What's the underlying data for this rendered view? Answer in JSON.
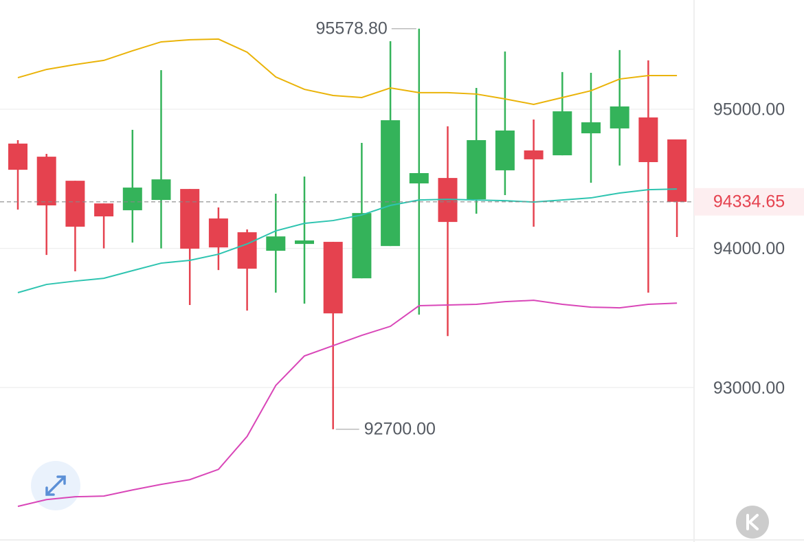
{
  "chart_data": {
    "type": "candlestick",
    "up_color": "#34b35a",
    "down_color": "#e5424f",
    "grid": true,
    "ylim": [
      91890,
      95785
    ],
    "yticks": [
      {
        "value": 95000,
        "label": "95000.00"
      },
      {
        "value": 94000,
        "label": "94000.00"
      },
      {
        "value": 93000,
        "label": "93000.00"
      }
    ],
    "open": [
      94753,
      94659,
      94486,
      94323,
      94274,
      94348,
      94427,
      94215,
      94116,
      93983,
      94032,
      94047,
      93785,
      94017,
      94467,
      94506,
      94353,
      94561,
      94704,
      94669,
      94827,
      94862,
      94941,
      94783
    ],
    "high": [
      94778,
      94679,
      94486,
      94323,
      94852,
      95281,
      94427,
      94294,
      94136,
      94393,
      94516,
      94047,
      94758,
      95489,
      95578.8,
      94877,
      95153,
      95415,
      94926,
      95267,
      95262,
      95425,
      95351,
      94783
    ],
    "low": [
      94279,
      93953,
      93835,
      94000,
      94042,
      94000,
      93593,
      93844,
      93553,
      93682,
      93603,
      92700,
      93785,
      94017,
      93524,
      93370,
      94249,
      94383,
      94156,
      94669,
      94472,
      94595,
      93682,
      94082
    ],
    "close": [
      94565,
      94309,
      94156,
      94230,
      94437,
      94496,
      93998,
      94007,
      93854,
      94086,
      94057,
      93533,
      94254,
      94921,
      94541,
      94190,
      94778,
      94847,
      94640,
      94985,
      94906,
      95020,
      94620,
      94334.65
    ],
    "bands": [
      {
        "color": "#eab308",
        "values": [
          95227,
          95286,
          95321,
          95351,
          95420,
          95484,
          95499,
          95504,
          95410,
          95232,
          95143,
          95099,
          95084,
          95153,
          95119,
          95119,
          95109,
          95074,
          95035,
          95084,
          95133,
          95217,
          95242,
          95242
        ]
      },
      {
        "color": "#2ec4b0",
        "values": [
          93682,
          93741,
          93765,
          93785,
          93840,
          93894,
          93914,
          93958,
          94032,
          94126,
          94180,
          94200,
          94240,
          94309,
          94348,
          94353,
          94348,
          94343,
          94333,
          94348,
          94363,
          94398,
          94422,
          94427
        ]
      },
      {
        "color": "#d946b8",
        "values": [
          92146,
          92195,
          92215,
          92220,
          92264,
          92304,
          92338,
          92412,
          92649,
          93015,
          93227,
          93301,
          93375,
          93440,
          93588,
          93593,
          93598,
          93617,
          93627,
          93598,
          93578,
          93573,
          93598,
          93607
        ]
      }
    ],
    "last_price": {
      "value": 94334.65,
      "label": "94334.65"
    },
    "high_annotation": {
      "index": 14,
      "value": 95578.8,
      "label": "95578.80"
    },
    "low_annotation": {
      "index": 11,
      "value": 92700,
      "label": "92700.00"
    }
  }
}
